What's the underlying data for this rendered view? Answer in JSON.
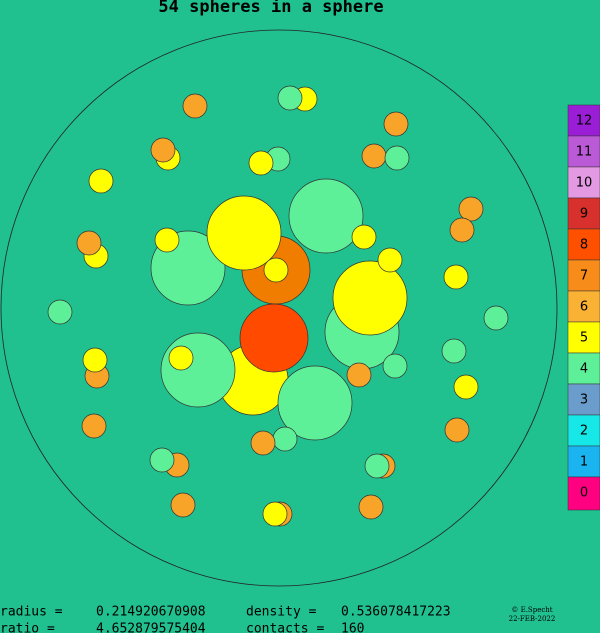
{
  "header": {
    "title": "54 spheres in a sphere"
  },
  "stats": {
    "radius_label": "radius =",
    "radius": "0.214920670908",
    "density_label": "density =",
    "density": "0.536078417223",
    "ratio_label": "ratio =",
    "ratio": "4.652879575404",
    "contacts_label": "contacts =",
    "contacts": "160"
  },
  "credit": {
    "author": "© E.Specht",
    "date": "22-FEB-2022"
  },
  "legend": [
    "12",
    "11",
    "10",
    "9",
    "8",
    "7",
    "6",
    "5",
    "4",
    "3",
    "2",
    "1",
    "0"
  ]
}
